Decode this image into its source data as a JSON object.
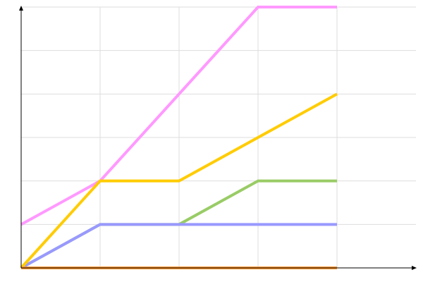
{
  "chart_data": {
    "type": "line",
    "title": "",
    "xlabel": "",
    "ylabel": "",
    "x": [
      0,
      1,
      2,
      3,
      4
    ],
    "xlim": [
      0,
      5
    ],
    "ylim": [
      0,
      6
    ],
    "grid": true,
    "legend": "none",
    "series": [
      {
        "color": "#99cc66",
        "values": [
          0,
          1,
          1,
          2,
          2
        ]
      },
      {
        "color": "#9999ff",
        "values": [
          0,
          1,
          1,
          1,
          1
        ]
      },
      {
        "color": "#ff99ff",
        "values": [
          1,
          2,
          4,
          6,
          6
        ]
      },
      {
        "color": "#ffcc00",
        "values": [
          0,
          2,
          2,
          3,
          4
        ]
      },
      {
        "color": "#ff9933",
        "values": [
          0,
          0,
          0,
          0,
          0
        ]
      }
    ]
  }
}
